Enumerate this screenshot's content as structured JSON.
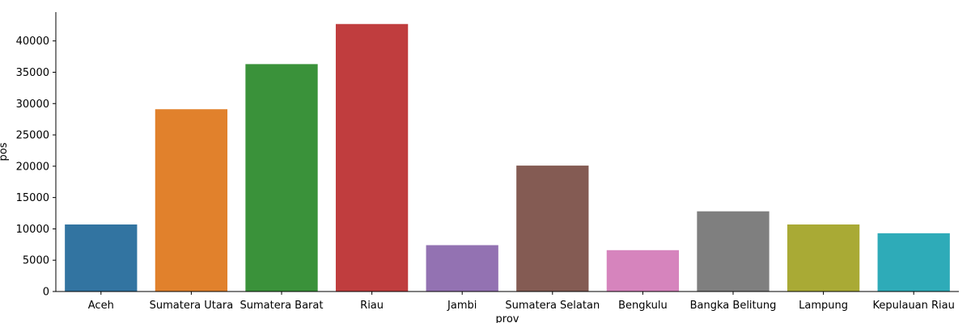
{
  "chart_data": {
    "type": "bar",
    "xlabel": "prov",
    "ylabel": "pos",
    "categories": [
      "Aceh",
      "Sumatera Utara",
      "Sumatera Barat",
      "Riau",
      "Jambi",
      "Sumatera Selatan",
      "Bengkulu",
      "Bangka Belitung",
      "Lampung",
      "Kepulauan Riau"
    ],
    "values": [
      10700,
      29100,
      36300,
      42700,
      7400,
      20100,
      6600,
      12800,
      10700,
      9300
    ],
    "colors": [
      "#3274a1",
      "#e1812c",
      "#3a923a",
      "#c03d3e",
      "#9372b2",
      "#845b53",
      "#d684bd",
      "#7f7f7f",
      "#a9aa35",
      "#2eabb8"
    ],
    "ylim": [
      0,
      44600
    ],
    "yticks": [
      0,
      5000,
      10000,
      15000,
      20000,
      25000,
      30000,
      35000,
      40000
    ],
    "ytick_labels": [
      "0",
      "5000",
      "10000",
      "15000",
      "20000",
      "25000",
      "30000",
      "35000",
      "40000"
    ],
    "grid": false,
    "legend": "none"
  }
}
